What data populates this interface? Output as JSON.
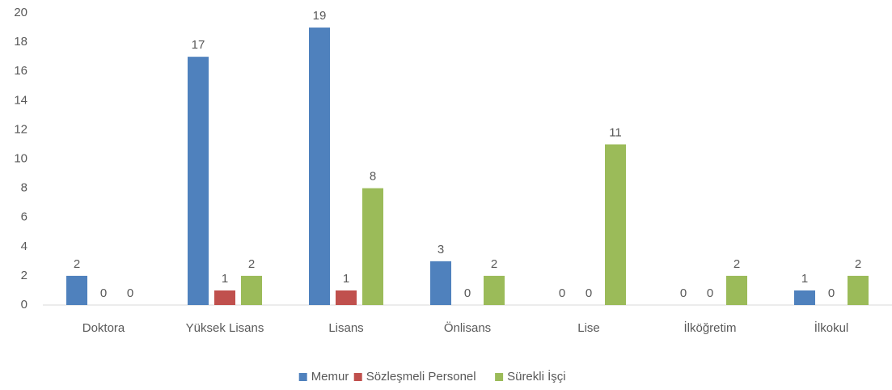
{
  "chart_data": {
    "type": "bar",
    "categories": [
      "Doktora",
      "Yüksek Lisans",
      "Lisans",
      "Önlisans",
      "Lise",
      "İlköğretim",
      "İlkokul"
    ],
    "series": [
      {
        "name": "Memur",
        "color": "#4f81bd",
        "values": [
          2,
          17,
          19,
          3,
          0,
          0,
          1
        ]
      },
      {
        "name": "Sözleşmeli Personel",
        "color": "#c0504d",
        "values": [
          0,
          1,
          1,
          0,
          0,
          0,
          0
        ]
      },
      {
        "name": "Sürekli İşçi",
        "color": "#9bbb59",
        "values": [
          0,
          2,
          8,
          2,
          11,
          2,
          2
        ]
      }
    ],
    "ylim": [
      0,
      20
    ],
    "yticks": [
      0,
      2,
      4,
      6,
      8,
      10,
      12,
      14,
      16,
      18,
      20
    ],
    "grid": false,
    "legend": "bottom"
  }
}
